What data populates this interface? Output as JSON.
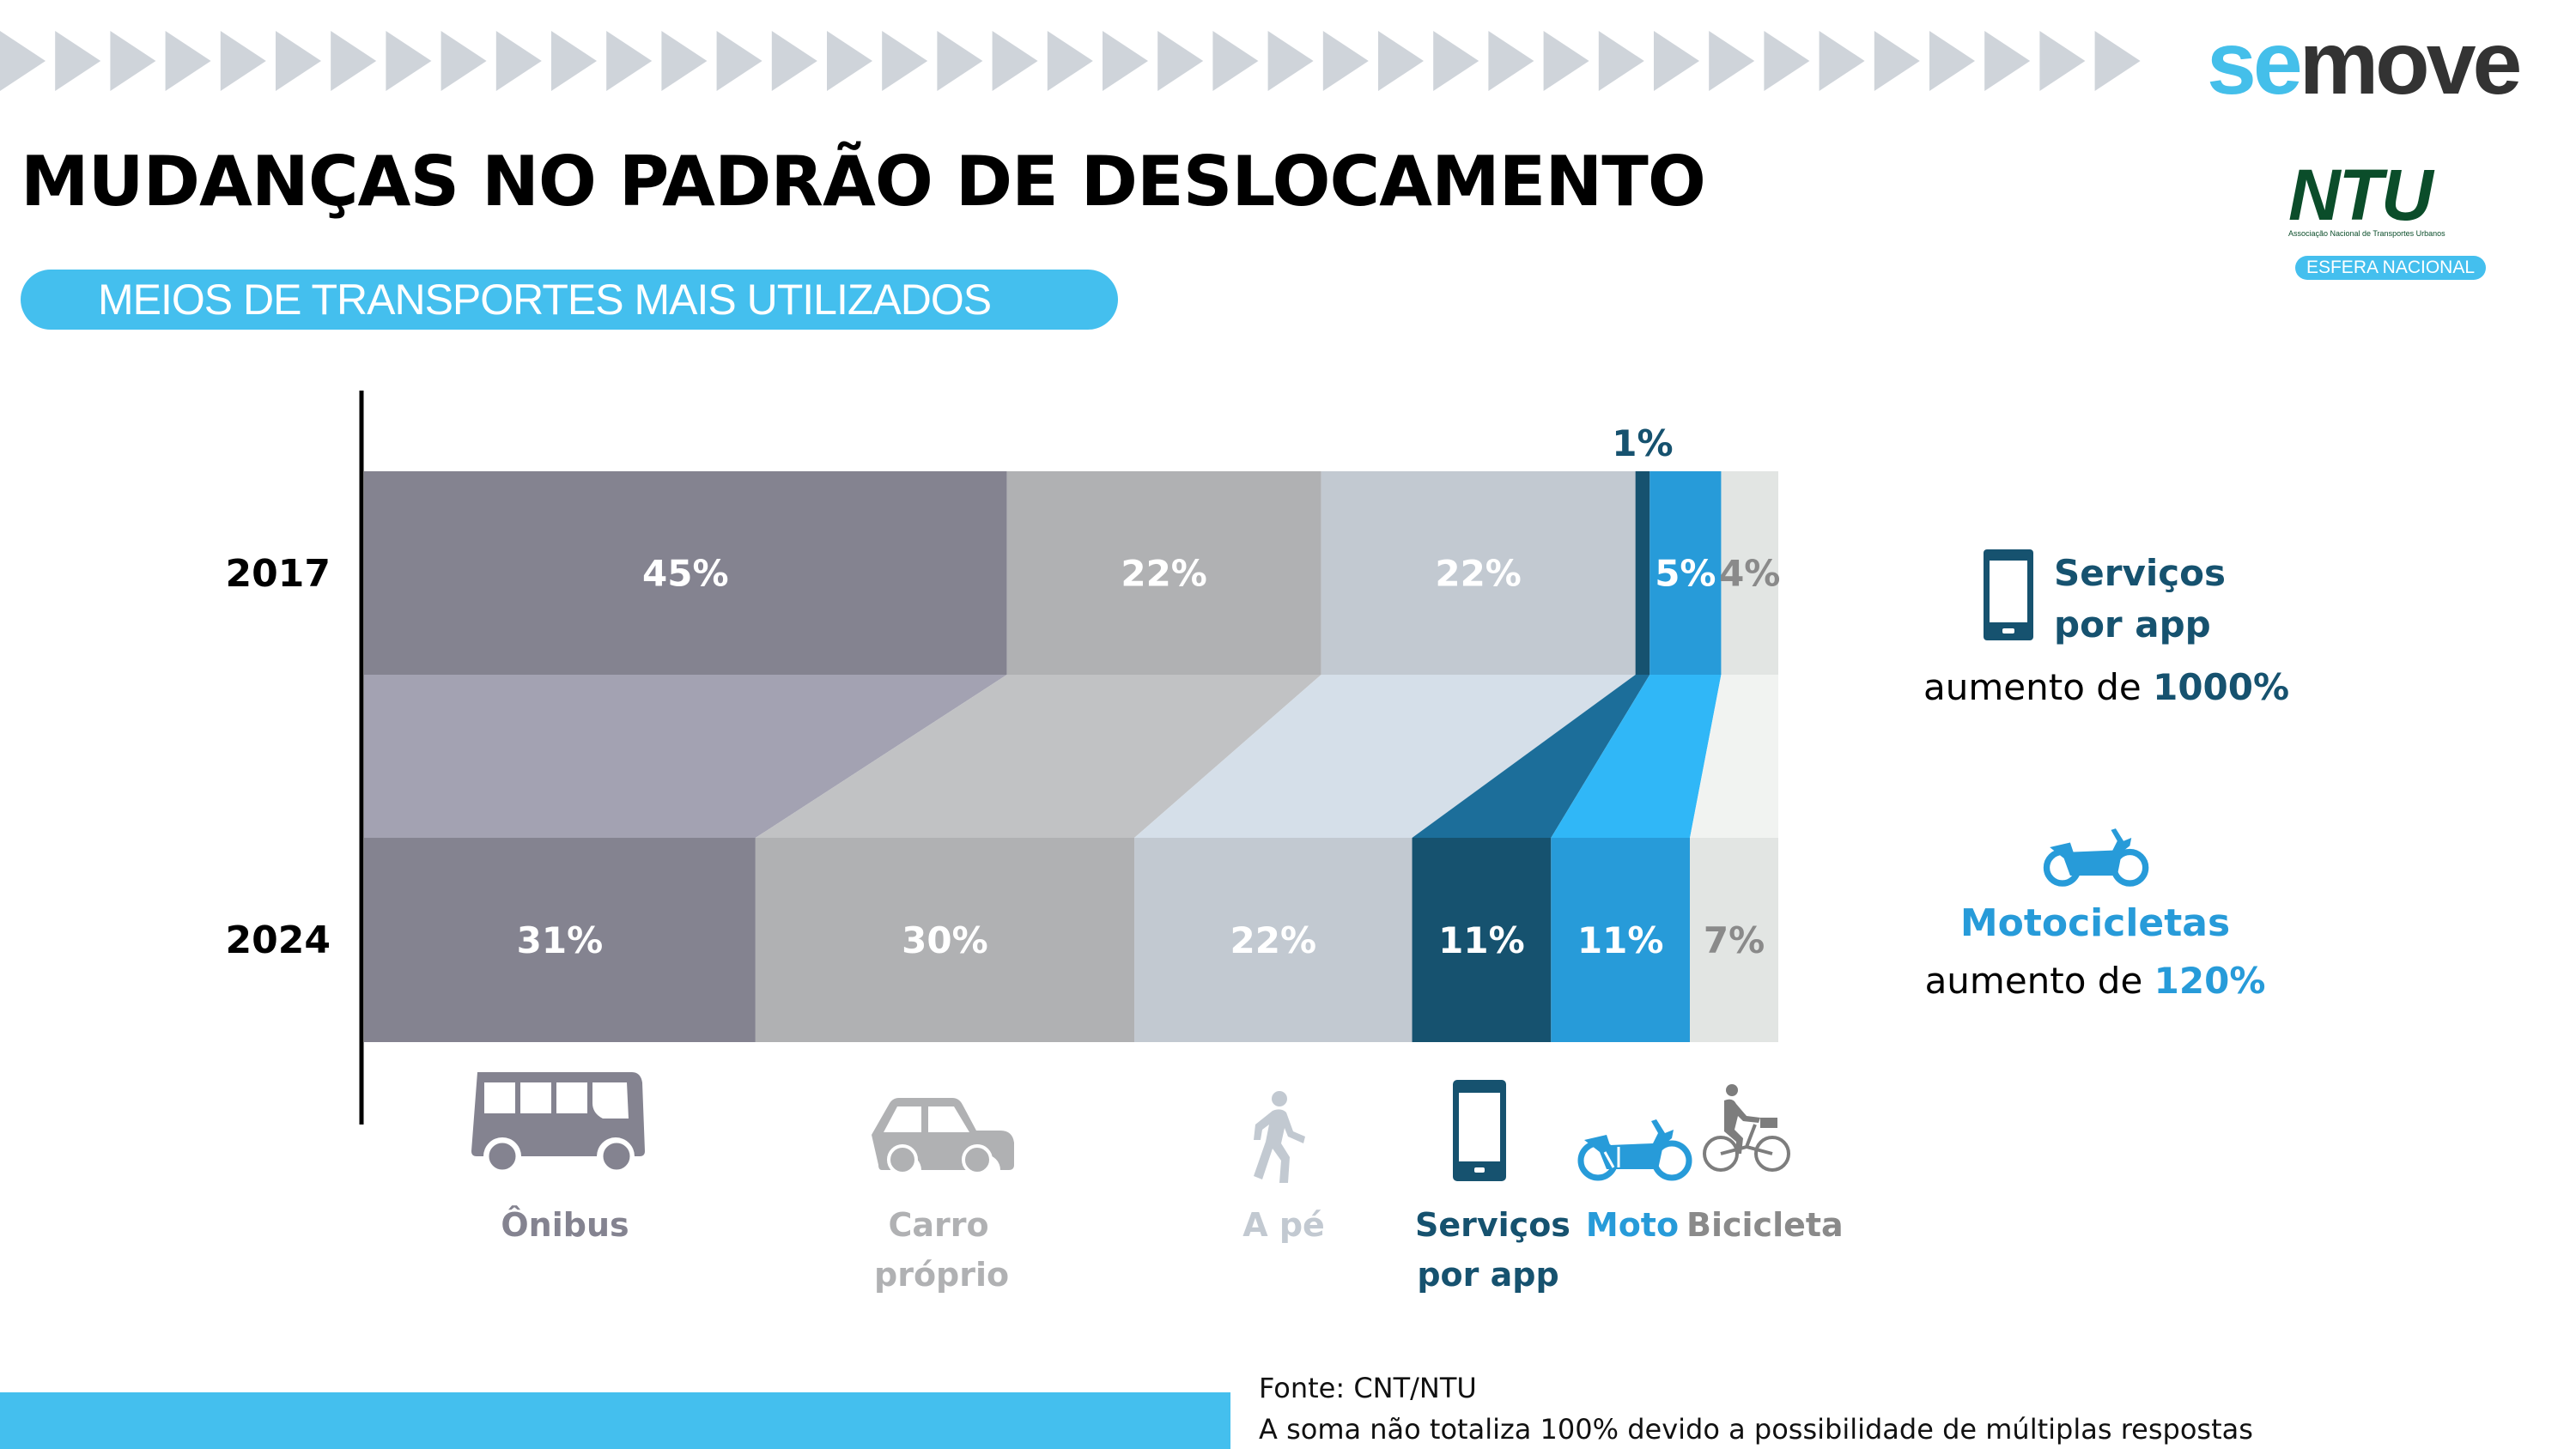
{
  "header": {
    "brand_logo": {
      "part1": "se",
      "part2": "move",
      "name": "semove"
    },
    "partner_logo": {
      "text": "NTU",
      "tagline": "Associação Nacional de Transportes Urbanos",
      "badge": "ESFERA NACIONAL"
    },
    "decoration": "chevron-row"
  },
  "title": "MUDANÇAS NO PADRÃO DE DESLOCAMENTO",
  "subtitle": "MEIOS DE TRANSPORTES MAIS UTILIZADOS",
  "colors": {
    "accent_blue": "#44bfee",
    "app_dark_blue": "#16526f",
    "moto_blue": "#279bd9",
    "onibus": "#848390",
    "carro": "#b0b1b3",
    "a_pe": "#c2c9d1",
    "bicicleta": "#e2e5e3"
  },
  "chart_data": {
    "type": "bar",
    "subtype": "stacked-horizontal-with-flow",
    "title": "MEIOS DE TRANSPORTES MAIS UTILIZADOS",
    "categories": [
      "2017",
      "2024"
    ],
    "series": [
      {
        "name": "Ônibus",
        "values": [
          45,
          31
        ],
        "labels": [
          "45%",
          "31%"
        ],
        "color": "#848390",
        "flow_color": "#a3a2b2",
        "label_color": "#ffffff",
        "icon": "bus-icon"
      },
      {
        "name": "Carro próprio",
        "values": [
          22,
          30
        ],
        "labels": [
          "22%",
          "30%"
        ],
        "color": "#b0b1b3",
        "flow_color": "#c1c2c4",
        "label_color": "#ffffff",
        "icon": "car-icon"
      },
      {
        "name": "A pé",
        "values": [
          22,
          22
        ],
        "labels": [
          "22%",
          "22%"
        ],
        "color": "#c2c9d1",
        "flow_color": "#d5dfe9",
        "label_color": "#ffffff",
        "icon": "walking-person-icon"
      },
      {
        "name": "Serviços por app",
        "values": [
          1,
          11
        ],
        "labels": [
          "1%",
          "11%"
        ],
        "color": "#16526f",
        "flow_color": "#1c6e9a",
        "label_color": "#ffffff",
        "icon": "smartphone-icon"
      },
      {
        "name": "Moto",
        "values": [
          5,
          11
        ],
        "labels": [
          "5%",
          "11%"
        ],
        "color": "#279bd9",
        "flow_color": "#30b7f7",
        "label_color": "#ffffff",
        "icon": "motorcycle-icon"
      },
      {
        "name": "Bicicleta",
        "values": [
          4,
          7
        ],
        "labels": [
          "4%",
          "7%"
        ],
        "color": "#e2e5e3",
        "flow_color": "#f1f3f1",
        "label_color": "#8a8a8a",
        "icon": "bicycle-icon"
      }
    ],
    "category_label_colors": [
      "#848390",
      "#b0b1b3",
      "#c2c9d1",
      "#16526f",
      "#279bd9",
      "#8a8a8a"
    ],
    "xlabel": "",
    "ylabel": "",
    "legend": "bottom",
    "grid": false
  },
  "category_labels": [
    {
      "lines": [
        "Ônibus"
      ]
    },
    {
      "lines": [
        "Carro",
        "próprio"
      ]
    },
    {
      "lines": [
        "A pé"
      ]
    },
    {
      "lines": [
        "Serviços",
        "por app"
      ]
    },
    {
      "lines": [
        "Moto"
      ]
    },
    {
      "lines": [
        "Bicicleta"
      ]
    }
  ],
  "highlights": [
    {
      "title_line1": "Serviços",
      "title_line2": "por app",
      "prefix": "aumento de ",
      "value": "1000%",
      "color": "#16526f",
      "icon": "smartphone-icon"
    },
    {
      "title_line1": "Motocicletas",
      "prefix": "aumento de ",
      "value": "120%",
      "color": "#279bd9",
      "icon": "motorcycle-icon"
    }
  ],
  "footer": {
    "source": "Fonte: CNT/NTU",
    "note": "A soma não totaliza 100% devido a possibilidade de múltiplas respostas"
  }
}
